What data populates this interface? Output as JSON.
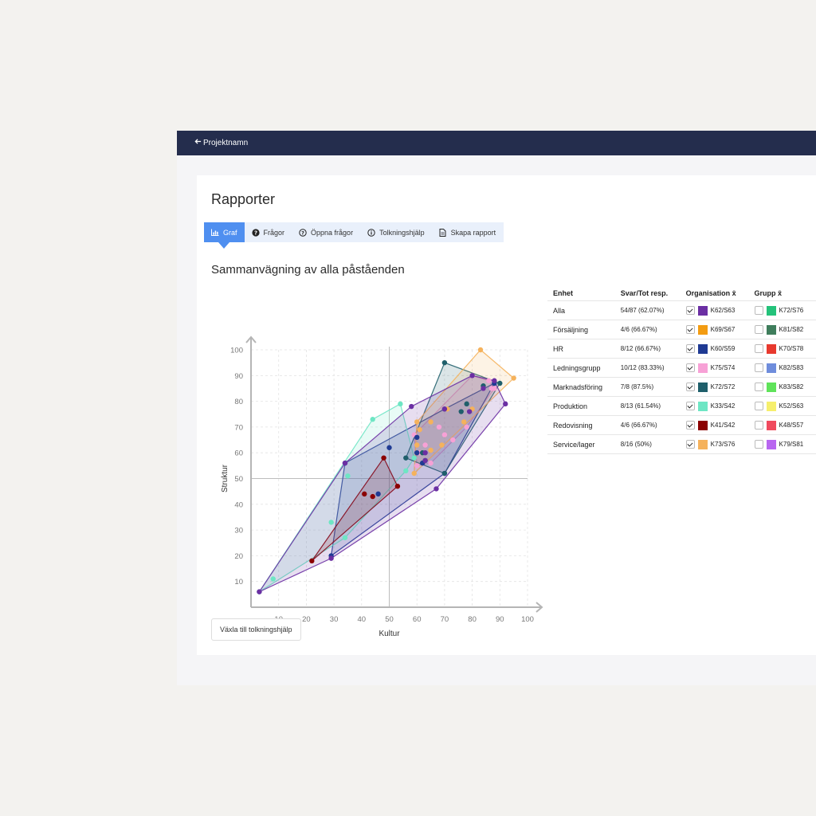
{
  "nav": {
    "back_label": "Projektnamn"
  },
  "page": {
    "title": "Rapporter"
  },
  "tabs": [
    {
      "label": "Graf",
      "icon": "bar-chart-icon",
      "active": true
    },
    {
      "label": "Frågor",
      "icon": "question-icon"
    },
    {
      "label": "Öppna frågor",
      "icon": "question-outline-icon"
    },
    {
      "label": "Tolkningshjälp",
      "icon": "info-icon"
    },
    {
      "label": "Skapa rapport",
      "icon": "document-icon"
    }
  ],
  "section_title": "Sammanvägning av alla påståenden",
  "toggle_button_label": "Växla till tolkningshjälp",
  "legend": {
    "headers": {
      "unit": "Enhet",
      "responses": "Svar/Tot resp.",
      "organisation": "Organisation x̄",
      "group": "Grupp x̄"
    },
    "rows": [
      {
        "unit": "Alla",
        "responses": "54/87 (62.07%)",
        "org_checked": true,
        "org_color": "#6b2fa3",
        "org_code": "K62/S63",
        "group_checked": false,
        "group_color": "#24c27a",
        "group_code": "K72/S76"
      },
      {
        "unit": "Försäljning",
        "responses": "4/6 (66.67%)",
        "org_checked": true,
        "org_color": "#f39c12",
        "org_code": "K69/S67",
        "group_checked": false,
        "group_color": "#3f7d5c",
        "group_code": "K81/S82"
      },
      {
        "unit": "HR",
        "responses": "8/12 (66.67%)",
        "org_checked": true,
        "org_color": "#1f3a93",
        "org_code": "K60/S59",
        "group_checked": false,
        "group_color": "#e8392e",
        "group_code": "K70/S78"
      },
      {
        "unit": "Ledningsgrupp",
        "responses": "10/12 (83.33%)",
        "org_checked": true,
        "org_color": "#f7a1d6",
        "org_code": "K75/S74",
        "group_checked": false,
        "group_color": "#6f8ddc",
        "group_code": "K82/S83"
      },
      {
        "unit": "Marknadsföring",
        "responses": "7/8 (87.5%)",
        "org_checked": true,
        "org_color": "#1f5f6b",
        "org_code": "K72/S72",
        "group_checked": false,
        "group_color": "#5fe35a",
        "group_code": "K83/S82"
      },
      {
        "unit": "Produktion",
        "responses": "8/13 (61.54%)",
        "org_checked": true,
        "org_color": "#6ee6c4",
        "org_code": "K33/S42",
        "group_checked": false,
        "group_color": "#f6ef6c",
        "group_code": "K52/S63"
      },
      {
        "unit": "Redovisning",
        "responses": "4/6 (66.67%)",
        "org_checked": true,
        "org_color": "#8b0000",
        "org_code": "K41/S42",
        "group_checked": false,
        "group_color": "#f04a5e",
        "group_code": "K48/S57"
      },
      {
        "unit": "Service/lager",
        "responses": "8/16 (50%)",
        "org_checked": true,
        "org_color": "#f5b25c",
        "org_code": "K73/S76",
        "group_checked": false,
        "group_color": "#b866f0",
        "group_code": "K79/S81"
      }
    ]
  },
  "chart_data": {
    "type": "scatter",
    "xlabel": "Kultur",
    "ylabel": "Struktur",
    "xlim": [
      0,
      100
    ],
    "ylim": [
      0,
      100
    ],
    "xticks": [
      10,
      20,
      30,
      40,
      50,
      60,
      70,
      80,
      90,
      100
    ],
    "yticks": [
      10,
      20,
      30,
      40,
      50,
      60,
      70,
      80,
      90,
      100
    ],
    "reference_lines": {
      "x": 50,
      "y": 50
    },
    "grid": true,
    "series": [
      {
        "color": "#f7a1d6",
        "points": [
          [
            60,
            55
          ],
          [
            59,
            67
          ],
          [
            61,
            60
          ],
          [
            63,
            63
          ],
          [
            65,
            56
          ],
          [
            68,
            70
          ],
          [
            70,
            67
          ],
          [
            73,
            65
          ],
          [
            76,
            76
          ],
          [
            78,
            70
          ],
          [
            80,
            90
          ],
          [
            84,
            85
          ],
          [
            87,
            85
          ],
          [
            88,
            85
          ],
          [
            86,
            88
          ]
        ]
      },
      {
        "color": "#1f3a93",
        "points": [
          [
            34,
            56
          ],
          [
            29,
            20
          ],
          [
            46,
            44
          ],
          [
            70,
            52
          ],
          [
            62,
            56
          ],
          [
            88,
            87
          ],
          [
            70,
            77
          ],
          [
            60,
            60
          ],
          [
            50,
            62
          ],
          [
            60,
            66
          ]
        ]
      },
      {
        "color": "#6ee6c4",
        "points": [
          [
            3,
            6
          ],
          [
            8,
            11
          ],
          [
            29,
            33
          ],
          [
            34,
            27
          ],
          [
            35,
            51
          ],
          [
            44,
            73
          ],
          [
            54,
            79
          ],
          [
            56,
            53
          ],
          [
            59,
            58
          ]
        ]
      },
      {
        "color": "#1f5f6b",
        "points": [
          [
            56,
            58
          ],
          [
            63,
            57
          ],
          [
            70,
            52
          ],
          [
            70,
            95
          ],
          [
            76,
            76
          ],
          [
            78,
            79
          ],
          [
            90,
            87
          ],
          [
            84,
            86
          ],
          [
            62,
            60
          ]
        ]
      },
      {
        "color": "#8b0000",
        "points": [
          [
            22,
            18
          ],
          [
            48,
            58
          ],
          [
            53,
            47
          ],
          [
            41,
            44
          ],
          [
            44,
            43
          ]
        ]
      },
      {
        "color": "#f5b25c",
        "points": [
          [
            59,
            52
          ],
          [
            60,
            63
          ],
          [
            60,
            72
          ],
          [
            61,
            69
          ],
          [
            65,
            61
          ],
          [
            65,
            72
          ],
          [
            69,
            63
          ],
          [
            71,
            77
          ],
          [
            77,
            72
          ],
          [
            80,
            77
          ],
          [
            83,
            100
          ],
          [
            95,
            89
          ]
        ]
      },
      {
        "color": "#6b2fa3",
        "points": [
          [
            3,
            6
          ],
          [
            29,
            19
          ],
          [
            34,
            56
          ],
          [
            58,
            78
          ],
          [
            67,
            46
          ],
          [
            70,
            77
          ],
          [
            79,
            76
          ],
          [
            80,
            90
          ],
          [
            88,
            88
          ],
          [
            92,
            79
          ],
          [
            84,
            85
          ],
          [
            63,
            60
          ],
          [
            63,
            57
          ]
        ]
      }
    ]
  }
}
